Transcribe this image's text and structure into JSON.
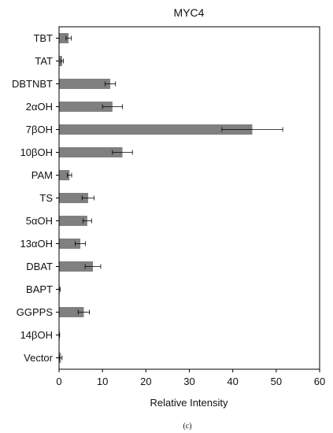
{
  "chart_data": {
    "type": "bar",
    "orientation": "horizontal",
    "title": "MYC4",
    "xlabel": "Relative Intensity",
    "ylabel": "",
    "xlim": [
      0,
      60
    ],
    "xticks": [
      0,
      10,
      20,
      30,
      40,
      50,
      60
    ],
    "grid": false,
    "bar_color": "#808080",
    "categories": [
      "TBT",
      "TAT",
      "DBTNBT",
      "2αOH",
      "7βOH",
      "10βOH",
      "PAM",
      "TS",
      "5αOH",
      "13αOH",
      "DBAT",
      "BAPT",
      "GGPPS",
      "14βOH",
      "Vector"
    ],
    "values": [
      2.2,
      0.7,
      11.8,
      12.3,
      44.5,
      14.6,
      2.4,
      6.7,
      6.5,
      4.9,
      7.8,
      0.15,
      5.7,
      0.1,
      0.4
    ],
    "errors": [
      0.6,
      0.3,
      1.2,
      2.3,
      7.0,
      2.3,
      0.5,
      1.4,
      1.0,
      1.2,
      1.8,
      0.1,
      1.3,
      0.05,
      0.3
    ]
  },
  "caption": "(c)"
}
